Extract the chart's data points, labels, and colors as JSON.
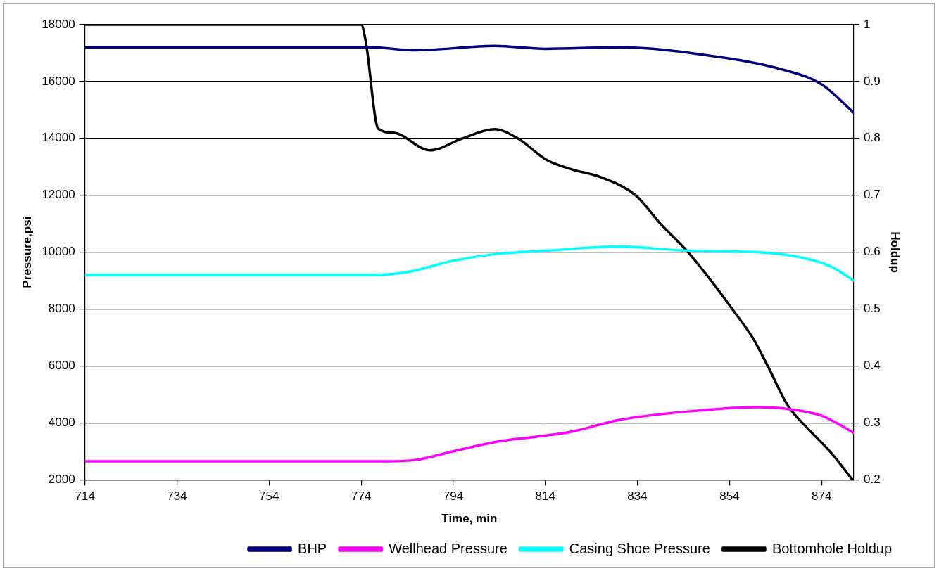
{
  "chart_data": {
    "type": "line",
    "xlabel": "Time, min",
    "ylabel": "Pressure,psi",
    "y2label": "Holdup",
    "xlim": [
      714,
      881
    ],
    "xticks": [
      714,
      734,
      754,
      774,
      794,
      814,
      834,
      854,
      874
    ],
    "ylim": [
      2000,
      18000
    ],
    "yticks": [
      2000,
      4000,
      6000,
      8000,
      10000,
      12000,
      14000,
      16000,
      18000
    ],
    "y2lim": [
      0.2,
      1
    ],
    "y2ticks": [
      0.2,
      0.3,
      0.4,
      0.5,
      0.6,
      0.7,
      0.8,
      0.9,
      1
    ],
    "grid": "y",
    "legend": "bottom",
    "marker": "none",
    "line_style": "solid",
    "series": [
      {
        "name": "BHP",
        "color": "#000080",
        "x": [
          714,
          776,
          786,
          803,
          814,
          830,
          850,
          866,
          874,
          881
        ],
        "values": [
          17200,
          17200,
          17100,
          17250,
          17150,
          17200,
          16900,
          16400,
          15900,
          14900
        ]
      },
      {
        "name": "Wellhead Pressure",
        "color": "#ff00ff",
        "x": [
          714,
          780,
          786,
          794,
          804,
          814,
          820,
          830,
          845,
          860,
          866,
          874,
          881
        ],
        "values": [
          2650,
          2650,
          2700,
          3000,
          3350,
          3550,
          3700,
          4100,
          4400,
          4550,
          4500,
          4250,
          3650
        ]
      },
      {
        "name": "Casing Shoe Pressure",
        "color": "#00ffff",
        "x": [
          714,
          776,
          784,
          794,
          804,
          814,
          830,
          845,
          860,
          870,
          876,
          881
        ],
        "values": [
          9200,
          9200,
          9300,
          9700,
          9950,
          10050,
          10200,
          10050,
          10000,
          9800,
          9500,
          9000
        ]
      },
      {
        "name": "Bottomhole Holdup",
        "color": "#000000",
        "axis": "y2",
        "x": [
          714,
          774,
          775,
          777.7,
          781,
          789,
          796,
          803,
          808,
          814.3,
          820,
          826,
          833.6,
          839,
          845,
          850,
          854.6,
          859,
          862.3,
          866.7,
          871,
          876,
          880.7
        ],
        "values": [
          1,
          1,
          0.97,
          0.817,
          0.81,
          0.779,
          0.8,
          0.816,
          0.8,
          0.762,
          0.745,
          0.732,
          0.7,
          0.65,
          0.6,
          0.55,
          0.5,
          0.45,
          0.4,
          0.33,
          0.29,
          0.248,
          0.2
        ]
      }
    ]
  }
}
